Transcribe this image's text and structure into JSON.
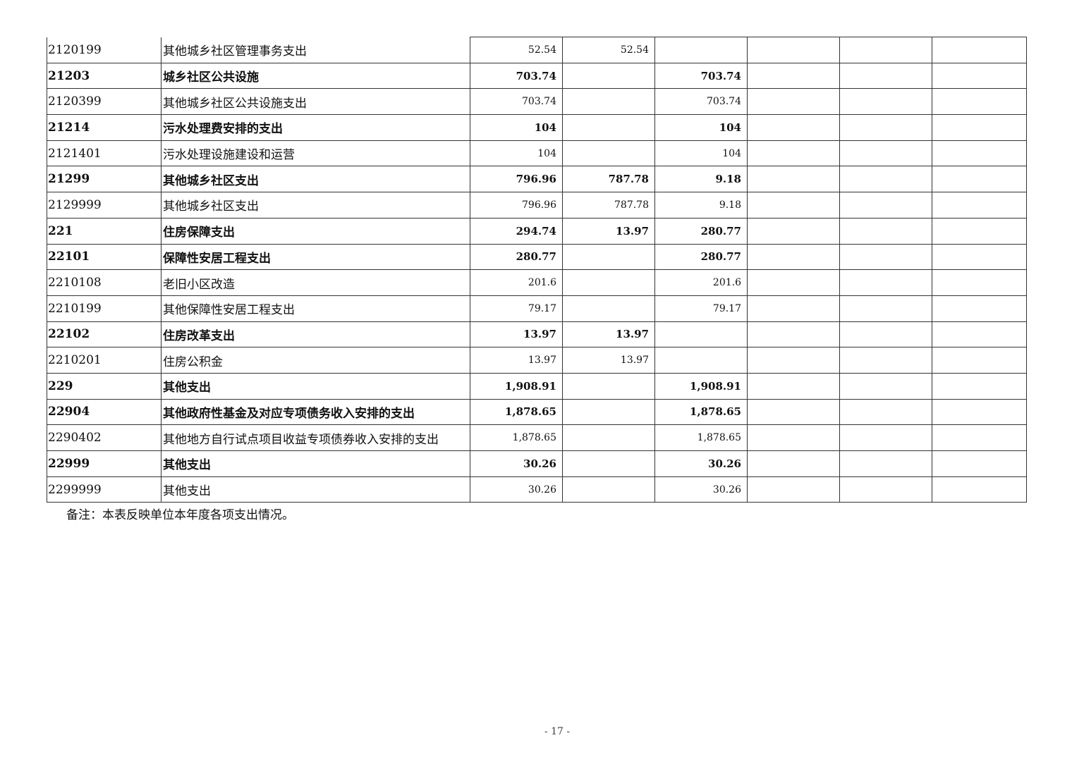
{
  "rows": [
    {
      "code": "2120199",
      "name": "其他城乡社区管理事务支出",
      "c1": "52.54",
      "c2": "52.54",
      "c3": "",
      "bold": false
    },
    {
      "code": "21203",
      "name": "城乡社区公共设施",
      "c1": "703.74",
      "c2": "",
      "c3": "703.74",
      "bold": true
    },
    {
      "code": "2120399",
      "name": "其他城乡社区公共设施支出",
      "c1": "703.74",
      "c2": "",
      "c3": "703.74",
      "bold": false
    },
    {
      "code": "21214",
      "name": "污水处理费安排的支出",
      "c1": "104",
      "c2": "",
      "c3": "104",
      "bold": true
    },
    {
      "code": "2121401",
      "name": "污水处理设施建设和运营",
      "c1": "104",
      "c2": "",
      "c3": "104",
      "bold": false
    },
    {
      "code": "21299",
      "name": "其他城乡社区支出",
      "c1": "796.96",
      "c2": "787.78",
      "c3": "9.18",
      "bold": true
    },
    {
      "code": "2129999",
      "name": "其他城乡社区支出",
      "c1": "796.96",
      "c2": "787.78",
      "c3": "9.18",
      "bold": false
    },
    {
      "code": "221",
      "name": "住房保障支出",
      "c1": "294.74",
      "c2": "13.97",
      "c3": "280.77",
      "bold": true
    },
    {
      "code": "22101",
      "name": "保障性安居工程支出",
      "c1": "280.77",
      "c2": "",
      "c3": "280.77",
      "bold": true
    },
    {
      "code": "2210108",
      "name": "老旧小区改造",
      "c1": "201.6",
      "c2": "",
      "c3": "201.6",
      "bold": false
    },
    {
      "code": "2210199",
      "name": "其他保障性安居工程支出",
      "c1": "79.17",
      "c2": "",
      "c3": "79.17",
      "bold": false
    },
    {
      "code": "22102",
      "name": "住房改革支出",
      "c1": "13.97",
      "c2": "13.97",
      "c3": "",
      "bold": true
    },
    {
      "code": "2210201",
      "name": "住房公积金",
      "c1": "13.97",
      "c2": "13.97",
      "c3": "",
      "bold": false
    },
    {
      "code": "229",
      "name": "其他支出",
      "c1": "1,908.91",
      "c2": "",
      "c3": "1,908.91",
      "bold": true
    },
    {
      "code": "22904",
      "name": "其他政府性基金及对应专项债务收入安排的支出",
      "c1": "1,878.65",
      "c2": "",
      "c3": "1,878.65",
      "bold": true
    },
    {
      "code": "2290402",
      "name": "其他地方自行试点项目收益专项债券收入安排的支出",
      "c1": "1,878.65",
      "c2": "",
      "c3": "1,878.65",
      "bold": false
    },
    {
      "code": "22999",
      "name": "其他支出",
      "c1": "30.26",
      "c2": "",
      "c3": "30.26",
      "bold": true
    },
    {
      "code": "2299999",
      "name": "其他支出",
      "c1": "30.26",
      "c2": "",
      "c3": "30.26",
      "bold": false
    }
  ],
  "note": "备注：本表反映单位本年度各项支出情况。",
  "page_number": "- 17 -"
}
